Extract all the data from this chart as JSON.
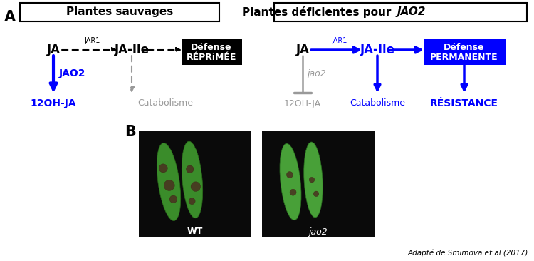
{
  "blue": "#0000FF",
  "gray": "#999999",
  "black": "#000000",
  "white": "#ffffff",
  "bg": "#ffffff",
  "panel_A_label": "A",
  "panel_B_label": "B",
  "left_title": "Plantes sauvages",
  "right_title": "Plantes déficientes pour ",
  "right_title_italic": "JAO2",
  "left_box_label1": "Défense",
  "left_box_label2": "RÉPRiMÉE",
  "right_box_label1": "Défense",
  "right_box_label2": "PERMANENTE",
  "left_JA": "JA",
  "left_JAIle": "JA-Ile",
  "left_JAR1": "JAR1",
  "left_JAO2": "JAO2",
  "left_12OHJA": "12OH-JA",
  "left_catabolisme": "Catabolisme",
  "right_JA": "JA",
  "right_JAIle": "JA-Ile",
  "right_JAR1": "JAR1",
  "right_jao2": "jao2",
  "right_12OHJA": "12OH-JA",
  "right_catabolisme": "Catabolisme",
  "right_resistance": "RÉSISTANCE",
  "credit": "Adapté de Smimova et al (2017)",
  "wt_label": "WT",
  "jao2_label": "jao2"
}
